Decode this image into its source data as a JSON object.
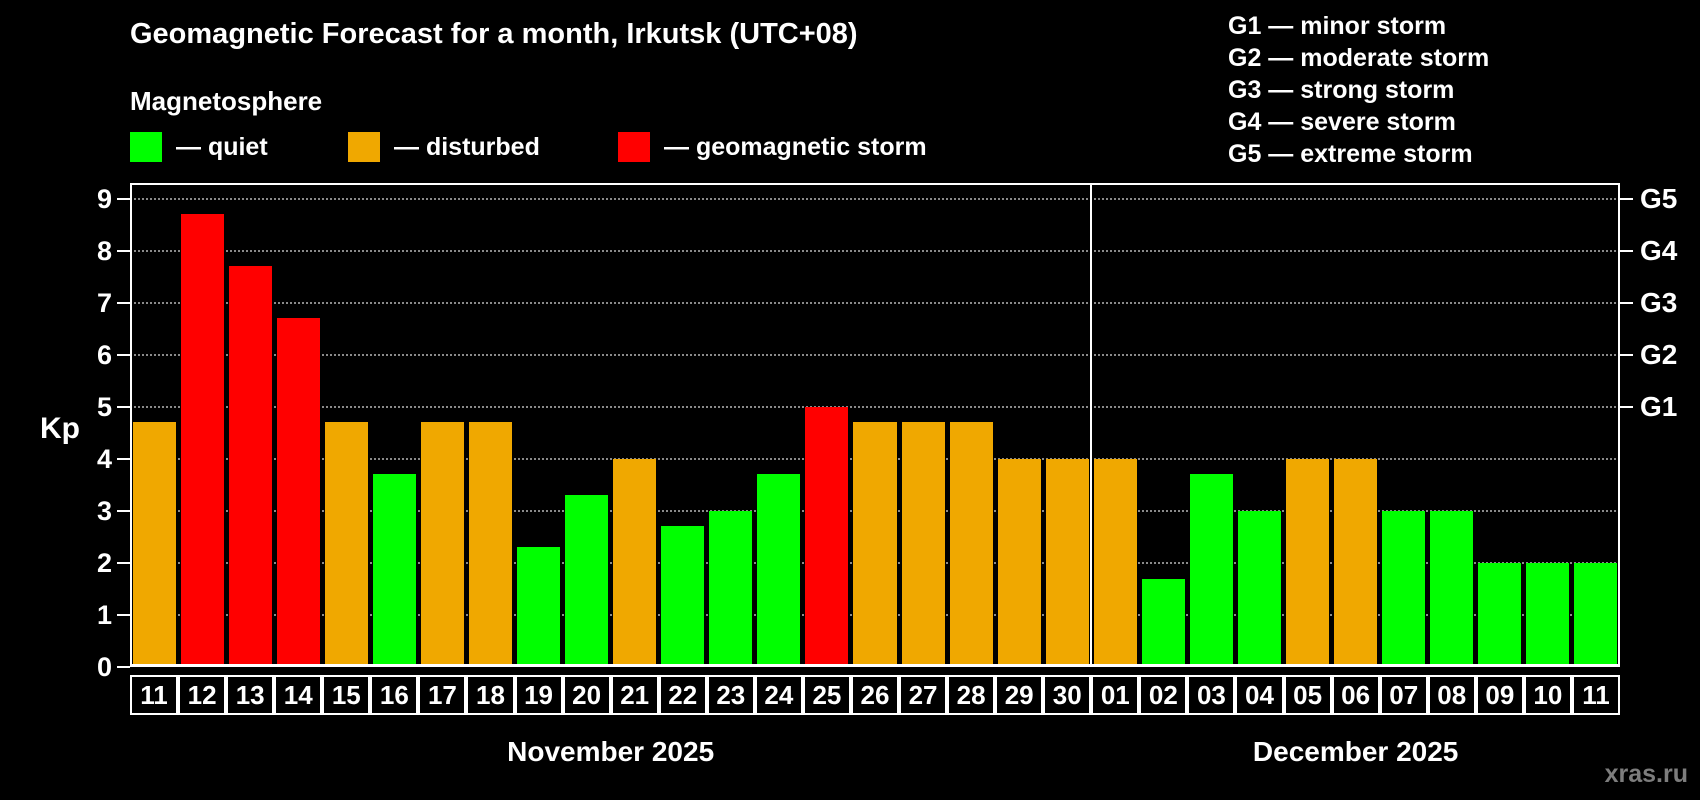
{
  "title": "Geomagnetic Forecast for a month, Irkutsk (UTC+08)",
  "subtitle": "Magnetosphere",
  "legend": [
    {
      "label": "— quiet",
      "color": "#00ff00",
      "status": "quiet"
    },
    {
      "label": "— disturbed",
      "color": "#f0a800",
      "status": "disturbed"
    },
    {
      "label": "— geomagnetic storm",
      "color": "#ff0000",
      "status": "storm"
    }
  ],
  "storm_scale": [
    "G1 — minor storm",
    "G2 — moderate storm",
    "G3 — strong storm",
    "G4 — severe storm",
    "G5 — extreme storm"
  ],
  "watermark": "xras.ru",
  "colors": {
    "quiet": "#00ff00",
    "disturbed": "#f0a800",
    "storm": "#ff0000",
    "background": "#000000",
    "text": "#ffffff"
  },
  "chart_data": {
    "type": "bar",
    "title": "Geomagnetic Forecast for a month, Irkutsk (UTC+08)",
    "ylabel": "Kp",
    "ylim": [
      0,
      9.3
    ],
    "yticks": [
      0,
      1,
      2,
      3,
      4,
      5,
      6,
      7,
      8,
      9
    ],
    "grid": "dotted horizontal",
    "g_scale": [
      {
        "label": "G1",
        "kp": 5
      },
      {
        "label": "G2",
        "kp": 6
      },
      {
        "label": "G3",
        "kp": 7
      },
      {
        "label": "G4",
        "kp": 8
      },
      {
        "label": "G5",
        "kp": 9
      }
    ],
    "months": [
      {
        "label": "November 2025",
        "days": [
          {
            "day": "11",
            "kp": 4.7,
            "status": "disturbed"
          },
          {
            "day": "12",
            "kp": 8.7,
            "status": "storm"
          },
          {
            "day": "13",
            "kp": 7.7,
            "status": "storm"
          },
          {
            "day": "14",
            "kp": 6.7,
            "status": "storm"
          },
          {
            "day": "15",
            "kp": 4.7,
            "status": "disturbed"
          },
          {
            "day": "16",
            "kp": 3.7,
            "status": "quiet"
          },
          {
            "day": "17",
            "kp": 4.7,
            "status": "disturbed"
          },
          {
            "day": "18",
            "kp": 4.7,
            "status": "disturbed"
          },
          {
            "day": "19",
            "kp": 2.3,
            "status": "quiet"
          },
          {
            "day": "20",
            "kp": 3.3,
            "status": "quiet"
          },
          {
            "day": "21",
            "kp": 4.0,
            "status": "disturbed"
          },
          {
            "day": "22",
            "kp": 2.7,
            "status": "quiet"
          },
          {
            "day": "23",
            "kp": 3.0,
            "status": "quiet"
          },
          {
            "day": "24",
            "kp": 3.7,
            "status": "quiet"
          },
          {
            "day": "25",
            "kp": 5.0,
            "status": "storm"
          },
          {
            "day": "26",
            "kp": 4.7,
            "status": "disturbed"
          },
          {
            "day": "27",
            "kp": 4.7,
            "status": "disturbed"
          },
          {
            "day": "28",
            "kp": 4.7,
            "status": "disturbed"
          },
          {
            "day": "29",
            "kp": 4.0,
            "status": "disturbed"
          },
          {
            "day": "30",
            "kp": 4.0,
            "status": "disturbed"
          }
        ]
      },
      {
        "label": "December 2025",
        "days": [
          {
            "day": "01",
            "kp": 4.0,
            "status": "disturbed"
          },
          {
            "day": "02",
            "kp": 1.7,
            "status": "quiet"
          },
          {
            "day": "03",
            "kp": 3.7,
            "status": "quiet"
          },
          {
            "day": "04",
            "kp": 3.0,
            "status": "quiet"
          },
          {
            "day": "05",
            "kp": 4.0,
            "status": "disturbed"
          },
          {
            "day": "06",
            "kp": 4.0,
            "status": "disturbed"
          },
          {
            "day": "07",
            "kp": 3.0,
            "status": "quiet"
          },
          {
            "day": "08",
            "kp": 3.0,
            "status": "quiet"
          },
          {
            "day": "09",
            "kp": 2.0,
            "status": "quiet"
          },
          {
            "day": "10",
            "kp": 2.0,
            "status": "quiet"
          },
          {
            "day": "11",
            "kp": 2.0,
            "status": "quiet"
          }
        ]
      }
    ]
  }
}
